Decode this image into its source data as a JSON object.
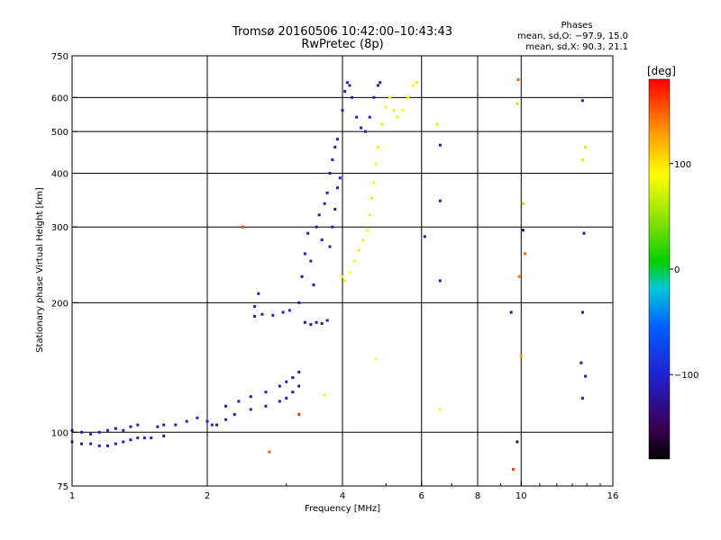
{
  "title_line1": "Tromsø 20160506 10:42:00–10:43:43",
  "title_line2": "RwPretec (8p)",
  "phase_info": {
    "heading": "Phases",
    "line1": "mean, sd,O: −97.9, 15.0",
    "line2": "mean, sd,X:  90.3, 21.1"
  },
  "colorbar": {
    "label": "[deg]",
    "ticks": [
      "100",
      "0",
      "−100"
    ],
    "tick_values": [
      100,
      0,
      -100
    ],
    "range": [
      -180,
      180
    ]
  },
  "chart_data": {
    "type": "scatter",
    "xlabel": "Frequency [MHz]",
    "ylabel": "Stationary phase Virtual Height [km]",
    "x_scale": "log",
    "y_scale": "log",
    "xlim": [
      1,
      16
    ],
    "ylim": [
      75,
      750
    ],
    "x_ticks": [
      1,
      2,
      4,
      6,
      8,
      10,
      16
    ],
    "x_tick_labels": [
      "1",
      "2",
      "4",
      "6",
      "8",
      "10",
      "16"
    ],
    "y_ticks": [
      75,
      100,
      200,
      300,
      400,
      500,
      600,
      750
    ],
    "y_tick_labels": [
      "75",
      "100",
      "200",
      "300",
      "400",
      "500",
      "600",
      "750"
    ],
    "grid": true,
    "series": [
      {
        "points": [
          [
            1.0,
            101,
            -110
          ],
          [
            1.05,
            100,
            -105
          ],
          [
            1.1,
            99,
            -115
          ],
          [
            1.15,
            100,
            -110
          ],
          [
            1.2,
            101,
            -100
          ],
          [
            1.25,
            102,
            -120
          ],
          [
            1.3,
            101,
            -110
          ],
          [
            1.35,
            103,
            -115
          ],
          [
            1.4,
            104,
            -105
          ],
          [
            1.0,
            95,
            -100
          ],
          [
            1.05,
            94,
            -120
          ],
          [
            1.1,
            94,
            -110
          ],
          [
            1.15,
            93,
            -105
          ],
          [
            1.2,
            93,
            -115
          ],
          [
            1.25,
            94,
            -100
          ],
          [
            1.3,
            95,
            -110
          ],
          [
            1.35,
            96,
            -120
          ],
          [
            1.4,
            97,
            -110
          ],
          [
            1.45,
            97,
            -100
          ],
          [
            1.5,
            97,
            -105
          ],
          [
            1.6,
            98,
            -110
          ],
          [
            1.55,
            103,
            -105
          ],
          [
            1.6,
            104,
            -100
          ],
          [
            1.7,
            104,
            -110
          ],
          [
            1.8,
            106,
            -100
          ],
          [
            1.9,
            108,
            -105
          ],
          [
            2.0,
            106,
            -110
          ],
          [
            2.05,
            104,
            -100
          ],
          [
            2.1,
            104,
            -105
          ],
          [
            2.2,
            107,
            -110
          ],
          [
            2.3,
            110,
            -105
          ],
          [
            2.5,
            113,
            -100
          ],
          [
            2.7,
            115,
            -110
          ],
          [
            2.9,
            118,
            -105
          ],
          [
            3.0,
            120,
            -100
          ],
          [
            3.1,
            124,
            -110
          ],
          [
            3.2,
            128,
            -105
          ],
          [
            2.2,
            115,
            -110
          ],
          [
            2.35,
            118,
            -100
          ],
          [
            2.5,
            121,
            -105
          ],
          [
            2.7,
            124,
            -110
          ],
          [
            2.9,
            128,
            -100
          ],
          [
            3.0,
            131,
            -110
          ],
          [
            3.1,
            134,
            -105
          ],
          [
            3.2,
            138,
            -100
          ],
          [
            2.55,
            186,
            -100
          ],
          [
            2.65,
            188,
            -105
          ],
          [
            2.8,
            187,
            -110
          ],
          [
            2.95,
            190,
            -100
          ],
          [
            3.05,
            192,
            -105
          ],
          [
            2.6,
            210,
            -110
          ],
          [
            2.55,
            196,
            -105
          ],
          [
            3.2,
            200,
            -100
          ],
          [
            3.25,
            230,
            -110
          ],
          [
            3.3,
            260,
            -105
          ],
          [
            3.35,
            290,
            -110
          ],
          [
            3.4,
            250,
            -100
          ],
          [
            3.45,
            220,
            -115
          ],
          [
            3.5,
            300,
            -105
          ],
          [
            3.55,
            320,
            -110
          ],
          [
            3.6,
            280,
            -100
          ],
          [
            3.65,
            340,
            -105
          ],
          [
            3.3,
            180,
            -120
          ],
          [
            3.4,
            178,
            -115
          ],
          [
            3.5,
            180,
            -110
          ],
          [
            3.6,
            179,
            -120
          ],
          [
            3.7,
            182,
            -110
          ],
          [
            3.7,
            360,
            -110
          ],
          [
            3.75,
            400,
            -105
          ],
          [
            3.8,
            430,
            -100
          ],
          [
            3.85,
            460,
            -110
          ],
          [
            3.9,
            480,
            -105
          ],
          [
            3.75,
            270,
            -110
          ],
          [
            3.8,
            300,
            -105
          ],
          [
            3.85,
            330,
            -100
          ],
          [
            3.9,
            370,
            -110
          ],
          [
            3.95,
            390,
            -105
          ],
          [
            4.0,
            560,
            -110
          ],
          [
            4.05,
            620,
            -105
          ],
          [
            4.1,
            650,
            -100
          ],
          [
            4.15,
            640,
            -110
          ],
          [
            4.2,
            600,
            -105
          ],
          [
            4.3,
            540,
            -100
          ],
          [
            4.4,
            510,
            -110
          ],
          [
            4.5,
            500,
            -105
          ],
          [
            4.6,
            540,
            -100
          ],
          [
            4.7,
            600,
            -110
          ],
          [
            4.8,
            640,
            -105
          ],
          [
            4.85,
            650,
            -100
          ]
        ]
      },
      {
        "points": [
          [
            4.0,
            230,
            95
          ],
          [
            4.05,
            225,
            100
          ],
          [
            4.15,
            235,
            90
          ],
          [
            4.25,
            250,
            95
          ],
          [
            4.35,
            265,
            100
          ],
          [
            4.45,
            280,
            95
          ],
          [
            4.55,
            295,
            90
          ],
          [
            4.6,
            320,
            95
          ],
          [
            4.65,
            350,
            100
          ],
          [
            4.7,
            380,
            95
          ],
          [
            4.75,
            420,
            90
          ],
          [
            4.8,
            460,
            95
          ],
          [
            4.9,
            520,
            100
          ],
          [
            5.0,
            570,
            95
          ],
          [
            5.1,
            600,
            90
          ],
          [
            5.2,
            560,
            95
          ],
          [
            5.3,
            540,
            100
          ],
          [
            5.45,
            560,
            95
          ],
          [
            5.6,
            600,
            90
          ],
          [
            5.75,
            640,
            95
          ],
          [
            5.85,
            650,
            100
          ],
          [
            3.65,
            122,
            85
          ],
          [
            4.75,
            148,
            90
          ],
          [
            6.6,
            113,
            85
          ],
          [
            6.5,
            520,
            80
          ],
          [
            9.8,
            580,
            70
          ],
          [
            10.1,
            340,
            60
          ],
          [
            13.7,
            430,
            80
          ],
          [
            13.9,
            460,
            75
          ]
        ]
      },
      {
        "points": [
          [
            6.1,
            285,
            -120
          ],
          [
            6.6,
            465,
            -105
          ],
          [
            6.6,
            345,
            -110
          ],
          [
            6.6,
            225,
            -115
          ],
          [
            9.5,
            190,
            -120
          ],
          [
            9.8,
            95,
            -140
          ],
          [
            10.1,
            295,
            -130
          ],
          [
            13.7,
            590,
            -105
          ],
          [
            13.8,
            290,
            -110
          ],
          [
            13.7,
            190,
            -115
          ],
          [
            13.6,
            145,
            -120
          ],
          [
            13.9,
            135,
            -110
          ],
          [
            13.7,
            120,
            -105
          ]
        ]
      },
      {
        "points": [
          [
            2.4,
            300,
            160
          ],
          [
            2.75,
            90,
            150
          ],
          [
            3.2,
            110,
            160
          ],
          [
            9.6,
            82,
            160
          ],
          [
            9.85,
            660,
            150
          ],
          [
            9.9,
            230,
            140
          ],
          [
            10.0,
            150,
            130
          ],
          [
            10.2,
            260,
            150
          ]
        ]
      }
    ]
  }
}
